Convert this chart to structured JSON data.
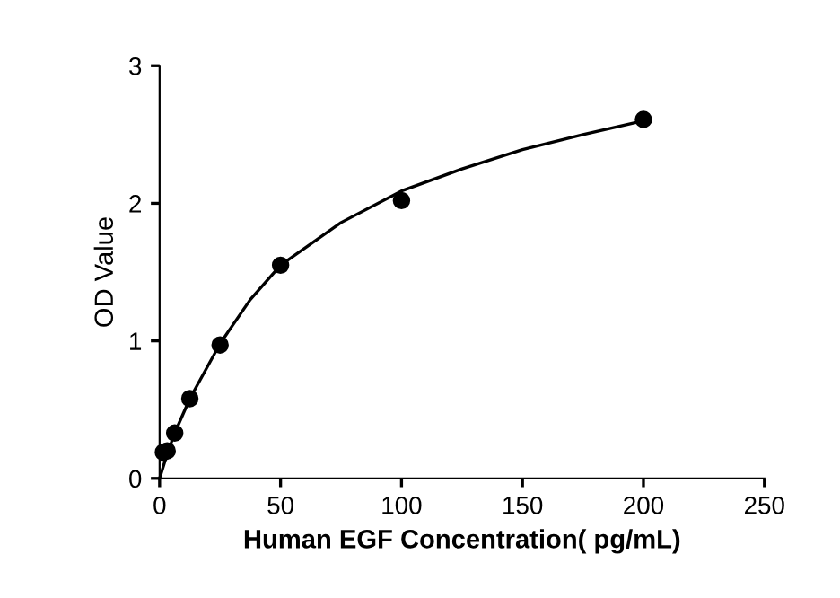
{
  "chart_data": {
    "type": "scatter",
    "xlabel": "Human EGF Concentration( pg/mL)",
    "ylabel": "OD Value",
    "series": [
      {
        "color": "#000000",
        "marker": "circle",
        "x": [
          1.56,
          3.13,
          6.25,
          12.5,
          25,
          50,
          100,
          200
        ],
        "values": [
          0.19,
          0.2,
          0.33,
          0.58,
          0.97,
          1.55,
          2.02,
          2.61
        ]
      },
      {
        "type": "line",
        "color": "#000000",
        "marker": "none",
        "x": [
          0,
          3,
          6.25,
          12.5,
          25,
          37.5,
          50,
          75,
          100,
          125,
          150,
          175,
          200
        ],
        "values": [
          0.0,
          0.17,
          0.33,
          0.58,
          0.98,
          1.3,
          1.55,
          1.86,
          2.09,
          2.25,
          2.39,
          2.5,
          2.6
        ]
      }
    ],
    "xlim": [
      0,
      250
    ],
    "ylim": [
      0,
      3
    ],
    "xticks": [
      0,
      50,
      100,
      150,
      200,
      250
    ],
    "yticks": [
      0,
      1,
      2,
      3
    ],
    "grid": false,
    "legend": false
  }
}
